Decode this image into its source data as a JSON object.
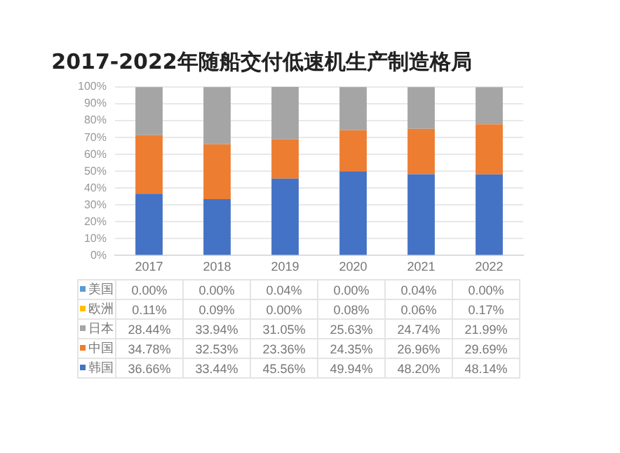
{
  "chart_data": {
    "type": "bar",
    "title": "2017-2022年随船交付低速机生产制造格局",
    "categories": [
      "2017",
      "2018",
      "2019",
      "2020",
      "2021",
      "2022"
    ],
    "stacked": true,
    "ylim": [
      0,
      100
    ],
    "yticks": [
      {
        "value": 0,
        "label": "0%"
      },
      {
        "value": 10,
        "label": "10%"
      },
      {
        "value": 20,
        "label": "20%"
      },
      {
        "value": 30,
        "label": "30%"
      },
      {
        "value": 40,
        "label": "40%"
      },
      {
        "value": 50,
        "label": "50%"
      },
      {
        "value": 60,
        "label": "60%"
      },
      {
        "value": 70,
        "label": "70%"
      },
      {
        "value": 80,
        "label": "80%"
      },
      {
        "value": 90,
        "label": "90%"
      },
      {
        "value": 100,
        "label": "100%"
      }
    ],
    "grid": "y",
    "legend": "bottom",
    "data_labels": true,
    "series": [
      {
        "name": "韩国",
        "color": "#4472c4",
        "values": [
          36.66,
          33.44,
          45.56,
          49.94,
          48.2,
          48.14
        ],
        "value_labels": [
          "36.66%",
          "33.44%",
          "45.56%",
          "49.94%",
          "48.20%",
          "48.14%"
        ]
      },
      {
        "name": "中国",
        "color": "#ed7d31",
        "values": [
          34.78,
          32.53,
          23.36,
          24.35,
          26.96,
          29.69
        ],
        "value_labels": [
          "34.78%",
          "32.53%",
          "23.36%",
          "24.35%",
          "26.96%",
          "29.69%"
        ]
      },
      {
        "name": "日本",
        "color": "#a5a5a5",
        "values": [
          28.44,
          33.94,
          31.05,
          25.63,
          24.74,
          21.99
        ],
        "value_labels": [
          "28.44%",
          "33.94%",
          "31.05%",
          "25.63%",
          "24.74%",
          "21.99%"
        ]
      },
      {
        "name": "欧洲",
        "color": "#ffc000",
        "values": [
          0.11,
          0.09,
          0.0,
          0.08,
          0.06,
          0.17
        ],
        "value_labels": [
          "0.11%",
          "0.09%",
          "0.00%",
          "0.08%",
          "0.06%",
          "0.17%"
        ]
      },
      {
        "name": "美国",
        "color": "#5b9bd5",
        "values": [
          0.0,
          0.0,
          0.04,
          0.0,
          0.04,
          0.0
        ],
        "value_labels": [
          "0.00%",
          "0.00%",
          "0.04%",
          "0.00%",
          "0.04%",
          "0.00%"
        ]
      }
    ]
  }
}
